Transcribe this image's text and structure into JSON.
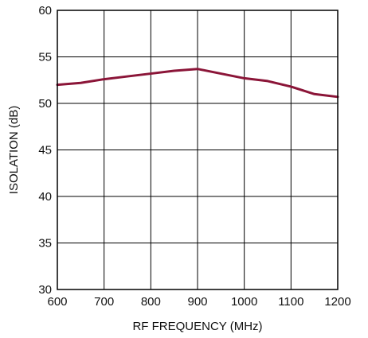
{
  "chart_data": {
    "type": "line",
    "title": "",
    "xlabel": "RF FREQUENCY (MHz)",
    "ylabel": "ISOLATION (dB)",
    "xlim": [
      600,
      1200
    ],
    "ylim": [
      30,
      60
    ],
    "xticks": [
      600,
      700,
      800,
      900,
      1000,
      1100,
      1200
    ],
    "yticks": [
      30,
      35,
      40,
      45,
      50,
      55,
      60
    ],
    "grid": true,
    "series": [
      {
        "color": "#8b1538",
        "x": [
          600,
          650,
          700,
          750,
          800,
          850,
          900,
          950,
          1000,
          1050,
          1100,
          1150,
          1200
        ],
        "y": [
          52.0,
          52.2,
          52.6,
          52.9,
          53.2,
          53.5,
          53.7,
          53.2,
          52.7,
          52.4,
          51.8,
          51.0,
          50.7
        ]
      }
    ]
  }
}
